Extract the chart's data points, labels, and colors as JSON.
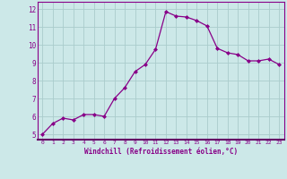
{
  "x": [
    0,
    1,
    2,
    3,
    4,
    5,
    6,
    7,
    8,
    9,
    10,
    11,
    12,
    13,
    14,
    15,
    16,
    17,
    18,
    19,
    20,
    21,
    22,
    23
  ],
  "y": [
    5.0,
    5.6,
    5.9,
    5.8,
    6.1,
    6.1,
    6.0,
    7.0,
    7.6,
    8.5,
    8.9,
    9.75,
    11.85,
    11.6,
    11.55,
    11.35,
    11.05,
    9.8,
    9.55,
    9.45,
    9.1,
    9.1,
    9.2,
    8.9
  ],
  "line_color": "#880088",
  "marker": "D",
  "marker_size": 2.0,
  "bg_color": "#cce8e8",
  "grid_color": "#aacccc",
  "xlabel": "Windchill (Refroidissement éolien,°C)",
  "yticks": [
    5,
    6,
    7,
    8,
    9,
    10,
    11,
    12
  ],
  "xlim": [
    -0.5,
    23.5
  ],
  "ylim": [
    4.7,
    12.4
  ],
  "xticks": [
    0,
    1,
    2,
    3,
    4,
    5,
    6,
    7,
    8,
    9,
    10,
    11,
    12,
    13,
    14,
    15,
    16,
    17,
    18,
    19,
    20,
    21,
    22,
    23
  ],
  "tick_color": "#880088",
  "spine_color": "#880088",
  "axis_bottom_color": "#660066"
}
